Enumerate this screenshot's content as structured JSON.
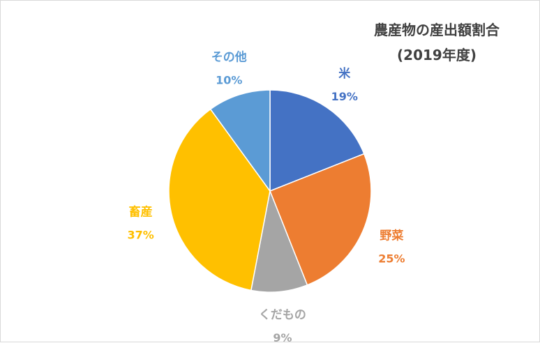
{
  "chart_data": {
    "type": "pie",
    "title": "農産物の産出額割合",
    "subtitle": "(2019年度)",
    "slices": [
      {
        "label": "米",
        "value": 19,
        "value_label": "19%",
        "color": "#4472C4"
      },
      {
        "label": "野菜",
        "value": 25,
        "value_label": "25%",
        "color": "#ED7D31"
      },
      {
        "label": "くだもの",
        "value": 9,
        "value_label": "9%",
        "color": "#A5A5A5"
      },
      {
        "label": "畜産",
        "value": 37,
        "value_label": "37%",
        "color": "#FFC000"
      },
      {
        "label": "その他",
        "value": 10,
        "value_label": "10%",
        "color": "#5B9BD5"
      }
    ],
    "start_angle_deg": 0,
    "direction": "clockwise",
    "legend": "none"
  }
}
